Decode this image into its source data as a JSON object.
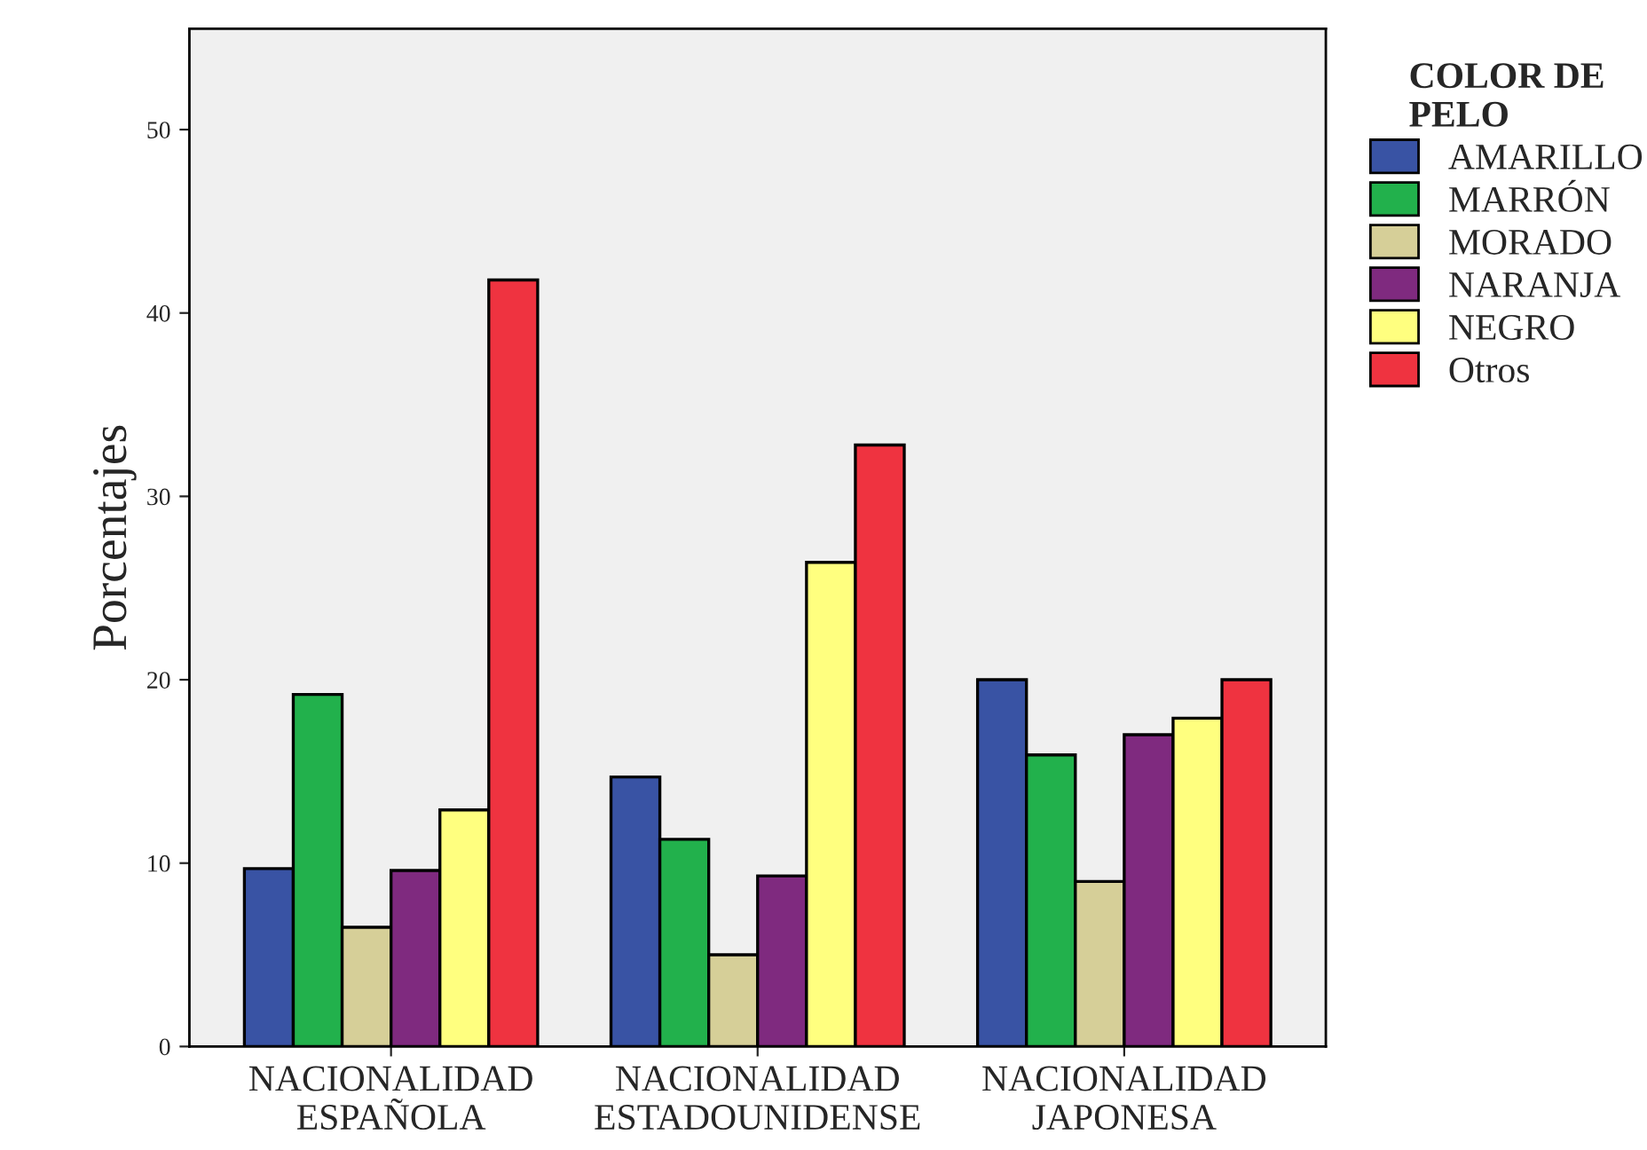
{
  "chart_data": {
    "type": "bar",
    "ylabel": "Porcentajes",
    "legend_title": "COLOR DE\nPELO",
    "categories": [
      "NACIONALIDAD\nESPAÑOLA",
      "NACIONALIDAD\nESTADOUNIDENSE",
      "NACIONALIDAD\nJAPONESA"
    ],
    "series": [
      {
        "name": "AMARILLO",
        "color": "#3953a4",
        "values": [
          9.7,
          14.7,
          20.0
        ]
      },
      {
        "name": "MARRÓN",
        "color": "#22b14c",
        "values": [
          19.2,
          11.3,
          15.9
        ]
      },
      {
        "name": "MORADO",
        "color": "#d6cf98",
        "values": [
          6.5,
          5.0,
          9.0
        ]
      },
      {
        "name": "NARANJA",
        "color": "#7f2a7f",
        "values": [
          9.6,
          9.3,
          17.0
        ]
      },
      {
        "name": "NEGRO",
        "color": "#ffff7f",
        "values": [
          12.9,
          26.4,
          17.9
        ]
      },
      {
        "name": "Otros",
        "color": "#ef3340",
        "values": [
          41.8,
          32.8,
          20.0
        ]
      }
    ],
    "ylim": [
      0,
      55.5
    ],
    "yticks": [
      0,
      10,
      20,
      30,
      40,
      50
    ],
    "grid": false,
    "legend": "right"
  }
}
